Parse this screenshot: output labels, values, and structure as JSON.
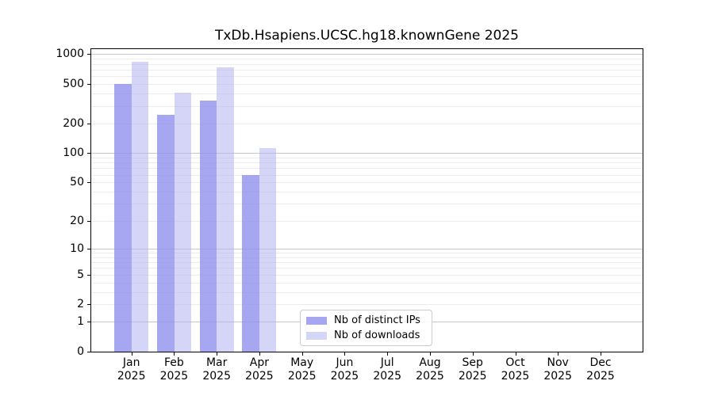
{
  "chart_data": {
    "type": "bar",
    "title": "TxDb.Hsapiens.UCSC.hg18.knownGene 2025",
    "categories": [
      "Jan 2025",
      "Feb 2025",
      "Mar 2025",
      "Apr 2025",
      "May 2025",
      "Jun 2025",
      "Jul 2025",
      "Aug 2025",
      "Sep 2025",
      "Oct 2025",
      "Nov 2025",
      "Dec 2025"
    ],
    "series": [
      {
        "name": "Nb of distinct IPs",
        "color": "rgba(145,145,238,0.8)",
        "values": [
          500,
          245,
          340,
          60,
          0,
          0,
          0,
          0,
          0,
          0,
          0,
          0
        ]
      },
      {
        "name": "Nb of downloads",
        "color": "rgba(178,178,243,0.55)",
        "values": [
          840,
          410,
          730,
          112,
          0,
          0,
          0,
          0,
          0,
          0,
          0,
          0
        ]
      }
    ],
    "xlabel": "",
    "ylabel": "",
    "y_ticks": [
      1000,
      500,
      200,
      100,
      50,
      20,
      10,
      5,
      2,
      1,
      0
    ],
    "y_scale": "log10(value+1)",
    "ylim": [
      0,
      1150
    ],
    "grid": "horizontal, major decade lines plus light log minor lines",
    "legend_position": "inside axes, bottom center-right"
  },
  "colors": {
    "bar_distinct_ips": "rgba(145,145,238,0.8)",
    "bar_downloads": "rgba(178,178,243,0.55)",
    "grid_major": "#c6c6c6",
    "grid_minor": "#ececec",
    "spine": "#000000",
    "tick_text": "#000000",
    "legend_border": "#cccccc"
  }
}
